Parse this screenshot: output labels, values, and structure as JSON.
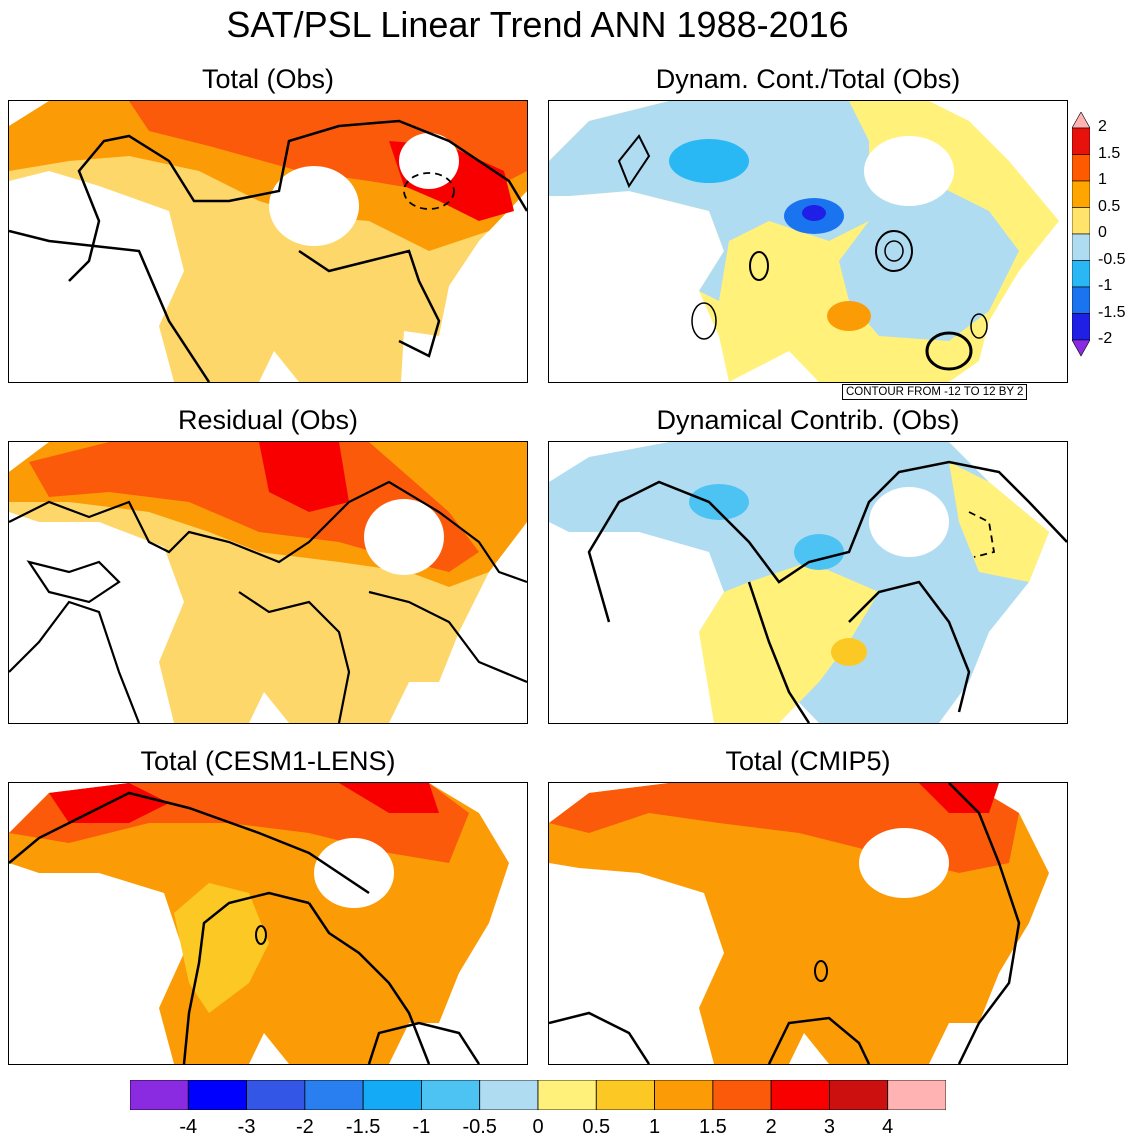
{
  "title": "SAT/PSL Linear Trend ANN 1988-2016",
  "panels": [
    {
      "id": "total-obs",
      "title": "Total (Obs)"
    },
    {
      "id": "dyn-ratio-obs",
      "title": "Dynam. Cont./Total (Obs)"
    },
    {
      "id": "residual-obs",
      "title": "Residual (Obs)"
    },
    {
      "id": "dyn-contrib-obs",
      "title": "Dynamical Contrib. (Obs)"
    },
    {
      "id": "total-lens",
      "title": "Total (CESM1-LENS)"
    },
    {
      "id": "total-cmip5",
      "title": "Total (CMIP5)"
    }
  ],
  "contour_note": "CONTOUR FROM -12 TO 12 BY 2",
  "ratio_colorbar": {
    "labels": [
      "2",
      "1.5",
      "1",
      "0.5",
      "0",
      "-0.5",
      "-1",
      "-1.5",
      "-2"
    ],
    "colors": [
      "#ffb3b3",
      "#e8120c",
      "#ff5a00",
      "#ffa500",
      "#ffe36b",
      "#b0dcf2",
      "#2ab8f5",
      "#1a74f0",
      "#1f1fe6",
      "#8a2be2"
    ]
  },
  "trend_colorbar": {
    "labels": [
      "-4",
      "-3",
      "-2",
      "-1.5",
      "-1",
      "-0.5",
      "0",
      "0.5",
      "1",
      "1.5",
      "2",
      "3",
      "4"
    ],
    "colors": [
      "#8a2be2",
      "#0000ff",
      "#3356e6",
      "#2a7ff0",
      "#15aaf5",
      "#4cc3f2",
      "#b0dcf2",
      "#fff17a",
      "#fcc924",
      "#fb9c06",
      "#fb5a0a",
      "#f80000",
      "#cc1010",
      "#ffb3b3"
    ]
  }
}
